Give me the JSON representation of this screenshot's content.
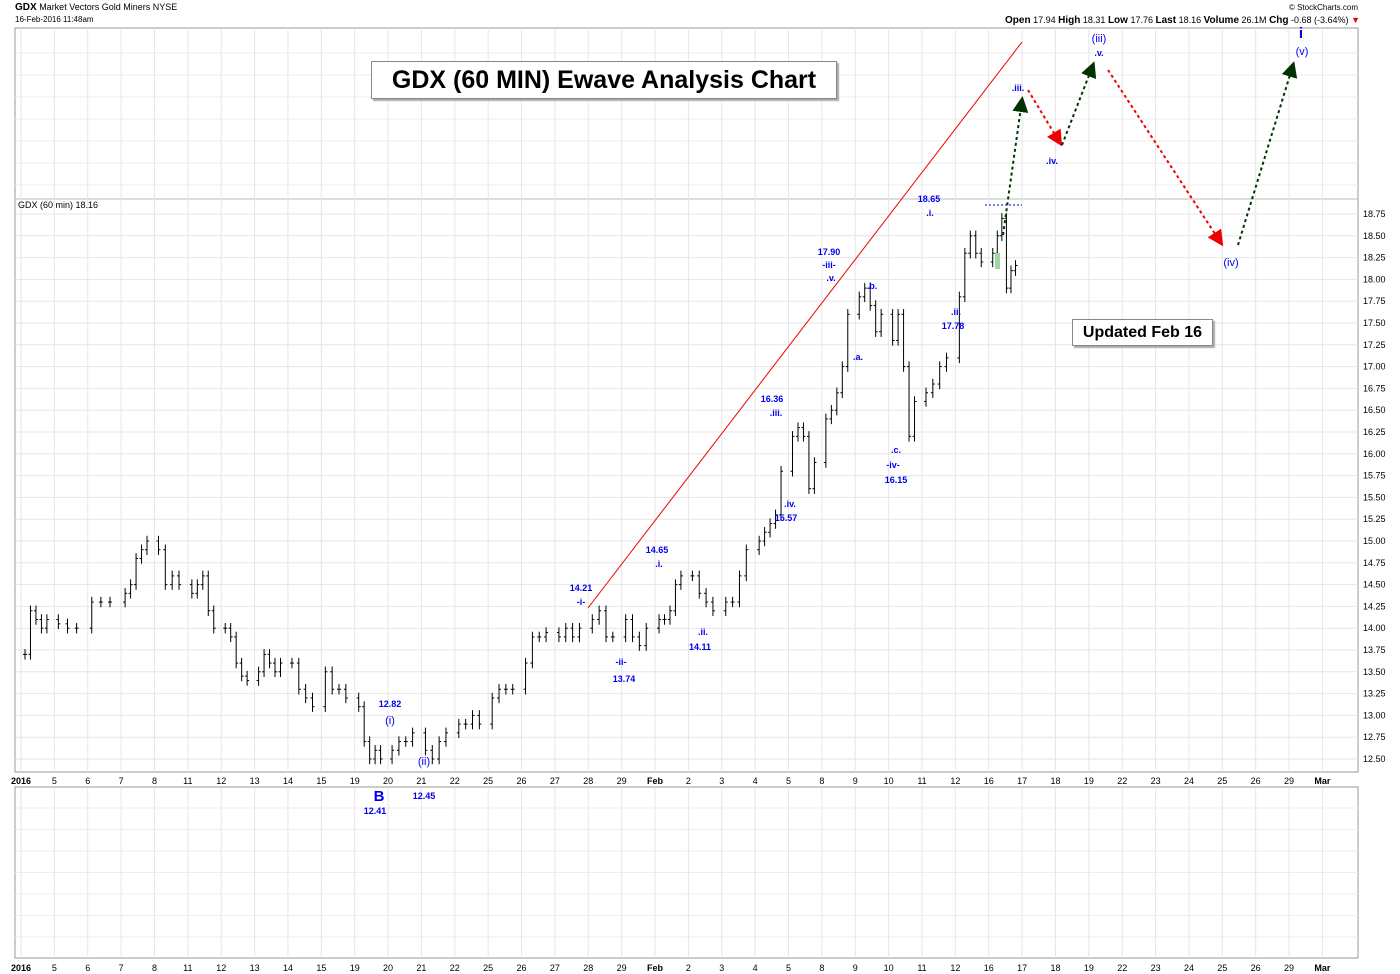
{
  "header": {
    "symbol": "GDX",
    "name": "Market Vectors Gold Miners",
    "exchange": "NYSE",
    "timestamp": "16-Feb-2016 11:48am",
    "copyright": "© StockCharts.com",
    "open_label": "Open",
    "open": "17.94",
    "high_label": "High",
    "high": "18.31",
    "low_label": "Low",
    "low": "17.76",
    "last_label": "Last",
    "last": "18.16",
    "volume_label": "Volume",
    "volume": "26.1M",
    "chg_label": "Chg",
    "chg": "-0.68 (-3.64%)",
    "chg_arrow": "▼"
  },
  "chart_data": {
    "type": "ohlc",
    "title": "GDX (60 MIN)  Ewave Analysis Chart",
    "series_label": "GDX (60 min) 18.16",
    "note": "Updated Feb 16",
    "ylim": [
      12.3,
      20.9
    ],
    "yticks": [
      "12.50",
      "12.75",
      "13.00",
      "13.25",
      "13.50",
      "13.75",
      "14.00",
      "14.25",
      "14.50",
      "14.75",
      "15.00",
      "15.25",
      "15.50",
      "15.75",
      "16.00",
      "16.25",
      "16.50",
      "16.75",
      "17.00",
      "17.25",
      "17.50",
      "17.75",
      "18.00",
      "18.25",
      "18.50",
      "18.75"
    ],
    "xticks": [
      "2016",
      "5",
      "6",
      "7",
      "8",
      "11",
      "12",
      "13",
      "14",
      "15",
      "19",
      "20",
      "21",
      "22",
      "25",
      "26",
      "27",
      "28",
      "29",
      "Feb",
      "2",
      "3",
      "4",
      "5",
      "8",
      "9",
      "10",
      "11",
      "12",
      "16",
      "17",
      "18",
      "19",
      "22",
      "23",
      "24",
      "25",
      "26",
      "29",
      "Mar"
    ],
    "daily_closes": [
      [
        13.7,
        14.2,
        14.1,
        14.0,
        14.1
      ],
      [
        14.05,
        14.0,
        14.0
      ],
      [
        14.3,
        14.3,
        14.3
      ],
      [
        14.4,
        14.5,
        14.8,
        14.9,
        15.0
      ],
      [
        14.9,
        14.5,
        14.6,
        14.5
      ],
      [
        14.4,
        14.5,
        14.6,
        14.2,
        14.0
      ],
      [
        14.0,
        13.9,
        13.6,
        13.45,
        13.4
      ],
      [
        13.5,
        13.7,
        13.6,
        13.5,
        13.6
      ],
      [
        13.6,
        13.3,
        13.2,
        13.1
      ],
      [
        13.5,
        13.3,
        13.3,
        13.2
      ],
      [
        13.1,
        12.7,
        12.5,
        12.6,
        12.5
      ],
      [
        12.6,
        12.7,
        12.7,
        12.8
      ],
      [
        12.6,
        12.5,
        12.7,
        12.8
      ],
      [
        12.9,
        12.9,
        13.0,
        12.9
      ],
      [
        13.2,
        13.3,
        13.3,
        13.3
      ],
      [
        13.6,
        13.9,
        13.9,
        13.95
      ],
      [
        13.9,
        14.0,
        13.9,
        14.0
      ],
      [
        14.1,
        14.2,
        13.9,
        13.9
      ],
      [
        14.1,
        13.9,
        13.8,
        14.0
      ],
      [
        14.1,
        14.1,
        14.2,
        14.5,
        14.6
      ],
      [
        14.6,
        14.4,
        14.3,
        14.2
      ],
      [
        14.3,
        14.3,
        14.6,
        14.9
      ],
      [
        15.0,
        15.1,
        15.2,
        15.3,
        15.8
      ],
      [
        16.2,
        16.3,
        16.2,
        15.6,
        15.9
      ],
      [
        16.4,
        16.5,
        16.7,
        17.0,
        17.6
      ],
      [
        17.8,
        17.9,
        17.7,
        17.4,
        17.6
      ],
      [
        17.3,
        17.6,
        17.0,
        16.2,
        16.6
      ],
      [
        16.7,
        16.8,
        17.0,
        17.1
      ],
      [
        17.8,
        18.3,
        18.5,
        18.3,
        18.2
      ],
      [
        18.3,
        18.5,
        18.7,
        17.9,
        18.1,
        18.16
      ]
    ],
    "annotations": [
      "12.82",
      "(i)",
      "B",
      "12.41",
      "(ii)",
      "12.45",
      "14.21",
      "-i-",
      "-ii-",
      "13.74",
      "14.65",
      ".i.",
      ".ii.",
      "14.11",
      "16.36",
      ".iii.",
      ".iv.",
      "15.57",
      "17.90",
      "-iii-",
      ".v.",
      ".b.",
      ".a.",
      ".c.",
      "-iv-",
      "16.15",
      "18.65",
      ".i.",
      ".ii.",
      "17.78",
      ".iii.",
      ".iv.",
      "(iii)",
      ".v.",
      "(iv)",
      "i",
      "(v)"
    ],
    "colors": {
      "bars": "#000000",
      "trendline": "#ee0000",
      "up_projection": "#003300",
      "down_projection": "#ee0000",
      "labels": "#0000ee"
    }
  }
}
